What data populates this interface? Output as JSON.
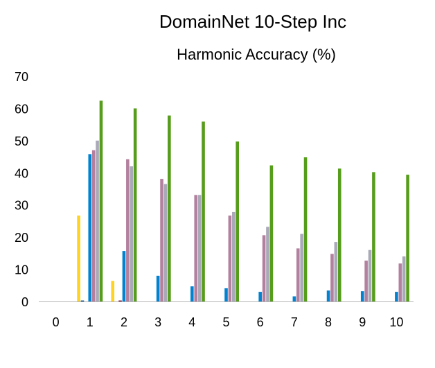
{
  "chart_data": {
    "type": "bar",
    "title": "DomainNet 10-Step Inc",
    "subtitle": "Harmonic Accuracy (%)",
    "xlabel": "",
    "ylabel": "",
    "ylim": [
      0,
      70
    ],
    "yticks": [
      "0",
      "10",
      "20",
      "30",
      "40",
      "50",
      "60",
      "70"
    ],
    "categories": [
      "0",
      "1",
      "2",
      "3",
      "4",
      "5",
      "6",
      "7",
      "8",
      "9",
      "10"
    ],
    "grid": false,
    "legend": "none",
    "series": [
      {
        "color": "#ffd320",
        "values": [
          0,
          26.7,
          6.4,
          0,
          0,
          0,
          0,
          0,
          0,
          0,
          0
        ]
      },
      {
        "color": "#004586",
        "values": [
          0,
          0.3,
          0,
          0,
          0,
          0,
          0,
          0,
          0,
          0,
          0
        ]
      },
      {
        "color": "#7e0021",
        "values": [
          0,
          0,
          0.3,
          0,
          0,
          0,
          0,
          0,
          0,
          0,
          0
        ]
      },
      {
        "color": "#0084d1",
        "values": [
          0,
          45.8,
          15.7,
          8.0,
          4.7,
          4.1,
          3.0,
          1.6,
          3.4,
          3.2,
          3.0
        ]
      },
      {
        "color": "#b3819f",
        "values": [
          0,
          47.0,
          44.2,
          38.1,
          33.1,
          26.7,
          20.6,
          16.5,
          14.8,
          12.7,
          11.8
        ]
      },
      {
        "color": "#a9a9b8",
        "values": [
          0,
          50.0,
          42.0,
          36.5,
          33.1,
          27.8,
          23.2,
          21.0,
          18.5,
          16.0,
          14.0
        ]
      },
      {
        "color": "#579d1c",
        "values": [
          0,
          62.4,
          60.0,
          57.8,
          55.9,
          49.7,
          42.3,
          44.8,
          41.3,
          40.2,
          39.4
        ]
      }
    ]
  }
}
